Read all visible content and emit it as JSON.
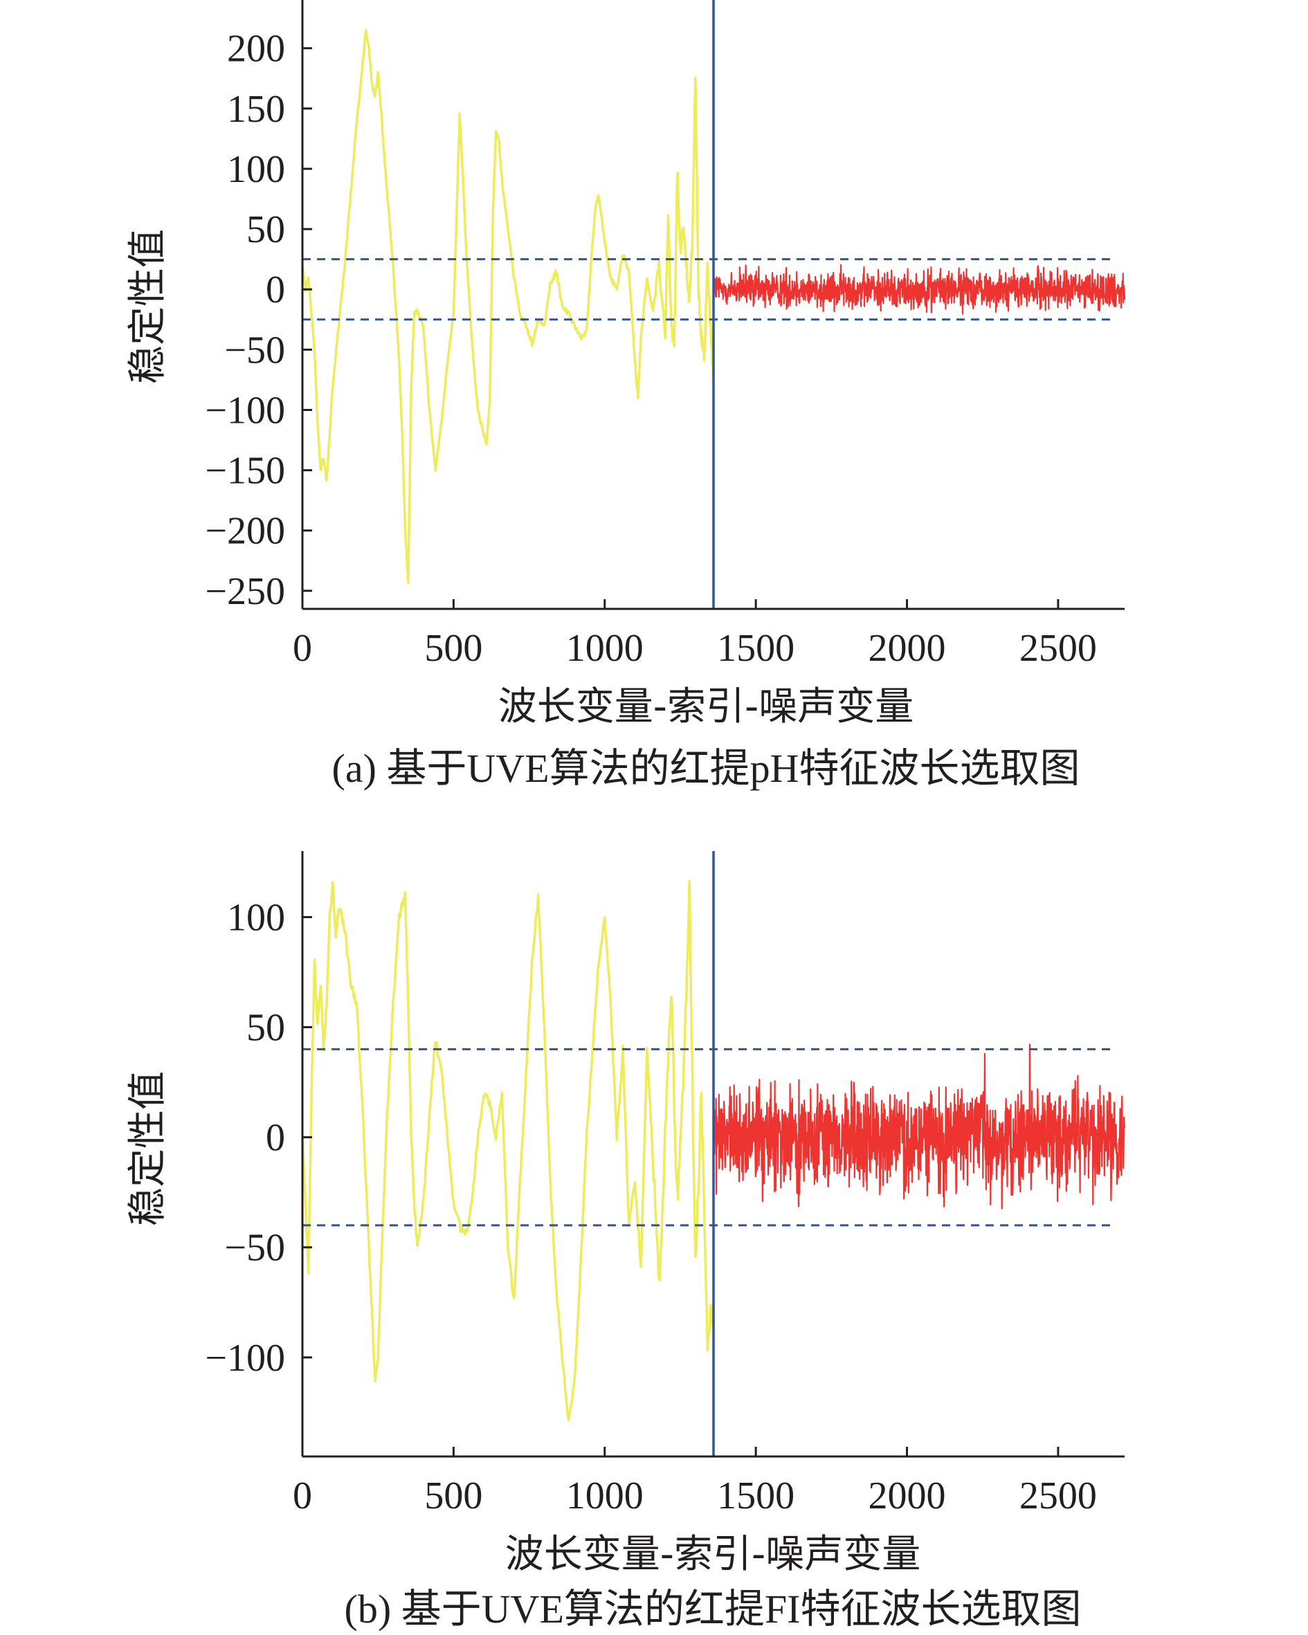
{
  "chart_data": [
    {
      "type": "line",
      "caption": "(a) 基于UVE算法的红提pH特征波长选取图",
      "xlabel": "波长变量-索引-噪声变量",
      "ylabel": "稳定性值",
      "xlim": [
        0,
        2720
      ],
      "ylim": [
        -265,
        240
      ],
      "xticks": [
        0,
        500,
        1000,
        1500,
        2000,
        2500
      ],
      "yticks": [
        200,
        150,
        100,
        50,
        0,
        -50,
        -100,
        -150,
        -200,
        -250
      ],
      "divider_x": 1360,
      "threshold": 25,
      "noise_amplitude": 17,
      "series": [
        {
          "role": "wavelength-variables",
          "color": "#eeec5a",
          "x": [
            0,
            10,
            20,
            30,
            40,
            50,
            60,
            70,
            80,
            90,
            100,
            120,
            140,
            160,
            180,
            200,
            210,
            220,
            230,
            240,
            250,
            260,
            280,
            300,
            320,
            330,
            340,
            350,
            360,
            370,
            380,
            400,
            420,
            440,
            460,
            480,
            500,
            510,
            520,
            530,
            540,
            560,
            580,
            600,
            610,
            620,
            630,
            640,
            650,
            660,
            680,
            700,
            720,
            740,
            760,
            780,
            800,
            820,
            840,
            860,
            880,
            900,
            920,
            940,
            960,
            970,
            980,
            990,
            1000,
            1020,
            1040,
            1060,
            1080,
            1090,
            1100,
            1110,
            1120,
            1140,
            1160,
            1180,
            1200,
            1210,
            1220,
            1230,
            1240,
            1250,
            1260,
            1270,
            1280,
            1290,
            1300,
            1310,
            1320,
            1330,
            1340,
            1350,
            1360
          ],
          "y": [
            20,
            0,
            10,
            -20,
            -50,
            -110,
            -150,
            -140,
            -160,
            -120,
            -80,
            -30,
            20,
            80,
            140,
            190,
            215,
            200,
            170,
            160,
            180,
            150,
            80,
            20,
            -60,
            -120,
            -200,
            -245,
            -80,
            -20,
            -18,
            -30,
            -100,
            -150,
            -110,
            -60,
            -20,
            60,
            145,
            100,
            40,
            -40,
            -100,
            -120,
            -128,
            -90,
            60,
            130,
            125,
            90,
            50,
            10,
            -20,
            -30,
            -45,
            -25,
            -30,
            5,
            15,
            -15,
            -20,
            -30,
            -40,
            -35,
            40,
            70,
            78,
            60,
            40,
            10,
            0,
            30,
            15,
            -20,
            -60,
            -90,
            -40,
            10,
            -20,
            20,
            -40,
            60,
            -30,
            -50,
            100,
            30,
            50,
            20,
            -10,
            40,
            178,
            0,
            -40,
            -55,
            20,
            -30,
            -75
          ]
        },
        {
          "role": "noise-variables",
          "color": "#ee3431",
          "x_range": [
            1360,
            2720
          ]
        }
      ]
    },
    {
      "type": "line",
      "caption": "(b) 基于UVE算法的红提FI特征波长选取图",
      "xlabel": "波长变量-索引-噪声变量",
      "ylabel": "稳定性值",
      "xlim": [
        0,
        2720
      ],
      "ylim": [
        -145,
        130
      ],
      "xticks": [
        0,
        500,
        1000,
        1500,
        2000,
        2500
      ],
      "yticks": [
        100,
        50,
        0,
        -50,
        -100
      ],
      "divider_x": 1360,
      "threshold": 40,
      "noise_amplitude": 25,
      "series": [
        {
          "role": "wavelength-variables",
          "color": "#eeec5a",
          "x": [
            0,
            10,
            20,
            30,
            40,
            50,
            60,
            70,
            80,
            90,
            100,
            110,
            120,
            140,
            160,
            180,
            200,
            220,
            240,
            250,
            260,
            280,
            300,
            320,
            340,
            350,
            360,
            370,
            380,
            400,
            420,
            440,
            460,
            480,
            500,
            520,
            540,
            560,
            580,
            600,
            620,
            640,
            660,
            680,
            700,
            720,
            740,
            760,
            780,
            800,
            820,
            840,
            860,
            880,
            900,
            920,
            940,
            960,
            980,
            1000,
            1020,
            1040,
            1060,
            1080,
            1100,
            1120,
            1140,
            1160,
            1180,
            1200,
            1220,
            1240,
            1260,
            1280,
            1300,
            1320,
            1340,
            1360
          ],
          "y": [
            0,
            -30,
            -60,
            20,
            80,
            50,
            70,
            40,
            60,
            100,
            115,
            90,
            105,
            95,
            70,
            60,
            10,
            -50,
            -110,
            -100,
            -60,
            10,
            60,
            100,
            110,
            60,
            0,
            -30,
            -50,
            -30,
            10,
            45,
            30,
            0,
            -30,
            -40,
            -45,
            -30,
            0,
            20,
            15,
            0,
            20,
            -50,
            -75,
            -20,
            30,
            80,
            110,
            50,
            -20,
            -70,
            -100,
            -130,
            -110,
            -60,
            0,
            40,
            80,
            100,
            60,
            0,
            40,
            -40,
            -20,
            -60,
            40,
            -10,
            -70,
            0,
            70,
            -30,
            20,
            115,
            -60,
            20,
            -90,
            -75
          ]
        },
        {
          "role": "noise-variables",
          "color": "#ee3431",
          "x_range": [
            1360,
            2720
          ]
        }
      ]
    }
  ]
}
